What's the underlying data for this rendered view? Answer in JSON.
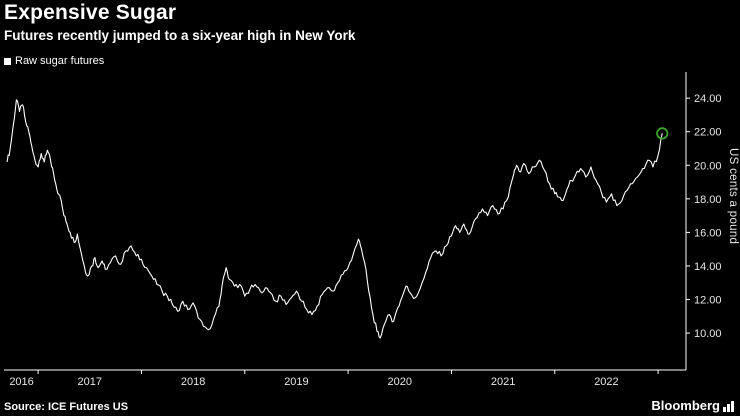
{
  "header": {
    "title": "Expensive Sugar",
    "subtitle": "Futures recently jumped to a six-year high in New York"
  },
  "legend": {
    "label": "Raw sugar futures",
    "swatch_color": "#ffffff"
  },
  "footer": {
    "source": "Source: ICE Futures US",
    "brand": "Bloomberg"
  },
  "chart_data": {
    "type": "line",
    "title": "Expensive Sugar",
    "subtitle": "Futures recently jumped to a six-year high in New York",
    "ylabel": "US cents a pound",
    "legend": [
      "Raw sugar futures"
    ],
    "legend_position": "top-left",
    "grid": false,
    "background": "#000000",
    "line_color": "#ffffff",
    "axis_color": "#ffffff",
    "tick_text_color": "#e6e6e6",
    "x_range": [
      2016.67,
      2023.27
    ],
    "ylim": [
      7.8,
      25.2
    ],
    "yticks": [
      {
        "value": 10,
        "label": "10.00"
      },
      {
        "value": 12,
        "label": "12.00"
      },
      {
        "value": 14,
        "label": "14.00"
      },
      {
        "value": 16,
        "label": "16.00"
      },
      {
        "value": 18,
        "label": "18.00"
      },
      {
        "value": 20,
        "label": "20.00"
      },
      {
        "value": 22,
        "label": "22.00"
      },
      {
        "value": 24,
        "label": "24.00"
      }
    ],
    "xticks": [
      {
        "value": 2016,
        "label": "2016"
      },
      {
        "value": 2017,
        "label": "2017"
      },
      {
        "value": 2018,
        "label": "2018"
      },
      {
        "value": 2019,
        "label": "2019"
      },
      {
        "value": 2020,
        "label": "2020"
      },
      {
        "value": 2021,
        "label": "2021"
      },
      {
        "value": 2022,
        "label": "2022"
      }
    ],
    "series": [
      {
        "name": "Raw sugar futures",
        "x": [
          2016.7,
          2016.73,
          2016.76,
          2016.79,
          2016.82,
          2016.85,
          2016.88,
          2016.91,
          2016.94,
          2016.97,
          2017.0,
          2017.03,
          2017.06,
          2017.09,
          2017.12,
          2017.15,
          2017.18,
          2017.21,
          2017.25,
          2017.28,
          2017.31,
          2017.35,
          2017.38,
          2017.42,
          2017.45,
          2017.48,
          2017.52,
          2017.55,
          2017.58,
          2017.62,
          2017.65,
          2017.7,
          2017.75,
          2017.8,
          2017.85,
          2017.9,
          2017.95,
          2018.0,
          2018.05,
          2018.1,
          2018.15,
          2018.2,
          2018.25,
          2018.3,
          2018.35,
          2018.4,
          2018.45,
          2018.5,
          2018.55,
          2018.6,
          2018.65,
          2018.7,
          2018.75,
          2018.78,
          2018.82,
          2018.85,
          2018.9,
          2018.95,
          2019.0,
          2019.05,
          2019.1,
          2019.15,
          2019.2,
          2019.25,
          2019.3,
          2019.35,
          2019.4,
          2019.45,
          2019.5,
          2019.55,
          2019.6,
          2019.65,
          2019.7,
          2019.75,
          2019.8,
          2019.85,
          2019.9,
          2019.95,
          2020.0,
          2020.05,
          2020.1,
          2020.13,
          2020.16,
          2020.2,
          2020.24,
          2020.28,
          2020.31,
          2020.35,
          2020.4,
          2020.44,
          2020.48,
          2020.52,
          2020.56,
          2020.6,
          2020.65,
          2020.7,
          2020.75,
          2020.8,
          2020.85,
          2020.9,
          2020.95,
          2021.0,
          2021.04,
          2021.08,
          2021.12,
          2021.16,
          2021.2,
          2021.25,
          2021.3,
          2021.35,
          2021.4,
          2021.45,
          2021.5,
          2021.55,
          2021.6,
          2021.63,
          2021.67,
          2021.7,
          2021.75,
          2021.8,
          2021.85,
          2021.9,
          2021.95,
          2022.0,
          2022.04,
          2022.08,
          2022.12,
          2022.16,
          2022.2,
          2022.25,
          2022.3,
          2022.35,
          2022.4,
          2022.45,
          2022.5,
          2022.55,
          2022.6,
          2022.65,
          2022.7,
          2022.75,
          2022.8,
          2022.85,
          2022.9,
          2022.95,
          2023.0,
          2023.04
        ],
        "y": [
          20.2,
          21.0,
          22.4,
          23.9,
          23.2,
          23.6,
          22.6,
          22.0,
          21.1,
          20.3,
          19.9,
          20.7,
          20.2,
          20.9,
          20.3,
          19.5,
          18.6,
          18.2,
          17.0,
          16.5,
          16.0,
          15.4,
          15.9,
          14.7,
          13.9,
          13.4,
          14.0,
          14.5,
          13.9,
          14.3,
          13.8,
          14.2,
          14.6,
          14.1,
          14.9,
          15.2,
          14.6,
          14.4,
          13.9,
          13.4,
          12.9,
          12.5,
          12.2,
          11.7,
          11.3,
          11.9,
          11.4,
          11.8,
          10.9,
          10.4,
          10.2,
          10.9,
          11.6,
          12.8,
          13.9,
          13.2,
          12.8,
          12.9,
          12.2,
          12.6,
          12.9,
          12.5,
          12.7,
          12.4,
          11.9,
          12.2,
          11.7,
          12.1,
          12.5,
          11.9,
          11.4,
          11.1,
          11.6,
          12.3,
          12.7,
          12.5,
          13.0,
          13.5,
          13.9,
          14.7,
          15.6,
          15.0,
          14.2,
          12.5,
          11.1,
          10.1,
          9.7,
          10.5,
          11.1,
          10.7,
          11.5,
          12.1,
          12.8,
          12.4,
          12.1,
          12.7,
          13.6,
          14.5,
          14.9,
          14.6,
          15.2,
          15.8,
          16.4,
          16.0,
          16.5,
          15.9,
          16.3,
          16.9,
          17.4,
          17.0,
          17.6,
          17.1,
          17.4,
          18.1,
          19.4,
          20.0,
          19.6,
          20.1,
          19.5,
          19.9,
          20.3,
          19.7,
          18.9,
          18.3,
          18.1,
          17.9,
          18.6,
          19.1,
          19.4,
          19.8,
          19.3,
          19.9,
          19.1,
          18.4,
          17.8,
          18.3,
          17.6,
          17.9,
          18.5,
          18.9,
          19.3,
          19.8,
          20.3,
          19.9,
          20.6,
          21.9
        ]
      }
    ],
    "endpoint_marker": {
      "x": 2023.04,
      "y": 21.9,
      "color": "#3fa32e",
      "shape": "circle-outline"
    }
  }
}
